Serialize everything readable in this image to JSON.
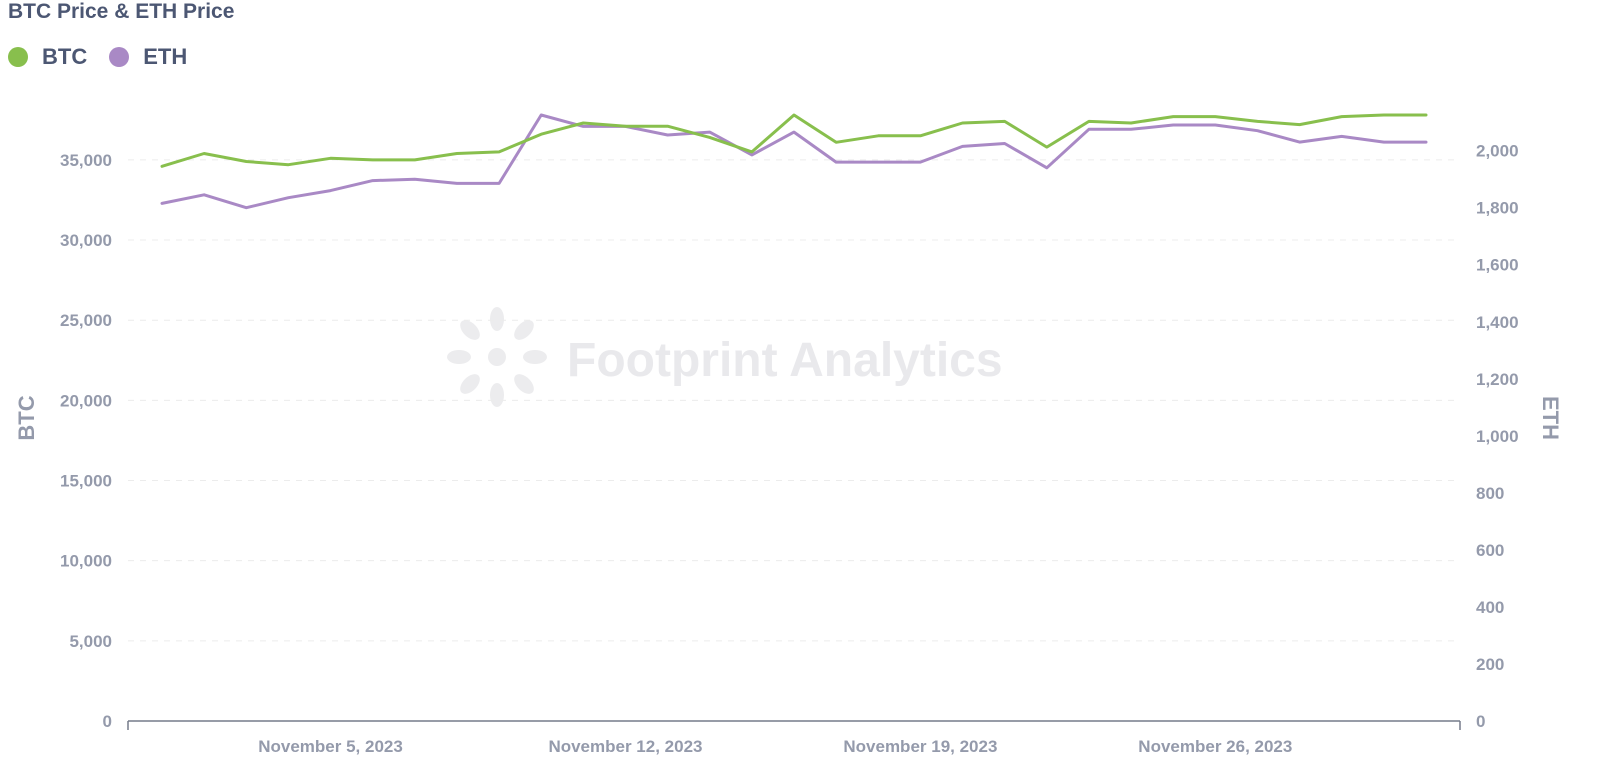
{
  "chart_data": {
    "type": "line",
    "title": "BTC Price & ETH Price",
    "x": [
      "2023-11-01",
      "2023-11-02",
      "2023-11-03",
      "2023-11-04",
      "2023-11-05",
      "2023-11-06",
      "2023-11-07",
      "2023-11-08",
      "2023-11-09",
      "2023-11-10",
      "2023-11-11",
      "2023-11-12",
      "2023-11-13",
      "2023-11-14",
      "2023-11-15",
      "2023-11-16",
      "2023-11-17",
      "2023-11-18",
      "2023-11-19",
      "2023-11-20",
      "2023-11-21",
      "2023-11-22",
      "2023-11-23",
      "2023-11-24",
      "2023-11-25",
      "2023-11-26",
      "2023-11-27",
      "2023-11-28",
      "2023-11-29",
      "2023-11-30",
      "2023-12-01"
    ],
    "x_ticks": [
      {
        "date": "2023-11-05",
        "label": "November 5, 2023"
      },
      {
        "date": "2023-11-12",
        "label": "November 12, 2023"
      },
      {
        "date": "2023-11-19",
        "label": "November 19, 2023"
      },
      {
        "date": "2023-11-26",
        "label": "November 26, 2023"
      }
    ],
    "series": [
      {
        "name": "BTC",
        "axis": "left",
        "color": "#88bf4d",
        "values": [
          34600,
          35400,
          34900,
          34700,
          35100,
          35000,
          35000,
          35400,
          35500,
          36600,
          37300,
          37100,
          37100,
          36400,
          35500,
          37800,
          36100,
          36500,
          36500,
          37300,
          37400,
          35800,
          37400,
          37300,
          37700,
          37700,
          37400,
          37200,
          37700,
          37800,
          37800
        ]
      },
      {
        "name": "ETH",
        "axis": "right",
        "color": "#a989c5",
        "values": [
          1815,
          1845,
          1800,
          1835,
          1860,
          1895,
          1900,
          1885,
          1885,
          2125,
          2085,
          2085,
          2055,
          2065,
          1985,
          2065,
          1960,
          1960,
          1960,
          2015,
          2025,
          1940,
          2075,
          2075,
          2090,
          2090,
          2070,
          2030,
          2050,
          2030,
          2030
        ]
      }
    ],
    "y_left": {
      "label": "BTC",
      "min": 0,
      "max": 37800,
      "ticks": [
        0,
        5000,
        10000,
        15000,
        20000,
        25000,
        30000,
        35000
      ],
      "tick_labels": [
        "0",
        "5,000",
        "10,000",
        "15,000",
        "20,000",
        "25,000",
        "30,000",
        "35,000"
      ]
    },
    "y_right": {
      "label": "ETH",
      "min": 0,
      "max": 2125,
      "ticks": [
        0,
        200,
        400,
        600,
        800,
        1000,
        1200,
        1400,
        1600,
        1800,
        2000
      ],
      "tick_labels": [
        "0",
        "200",
        "400",
        "600",
        "800",
        "1,000",
        "1,200",
        "1,400",
        "1,600",
        "1,800",
        "2,000"
      ]
    },
    "grid": true,
    "legend_position": "top-left",
    "watermark": "Footprint Analytics"
  }
}
